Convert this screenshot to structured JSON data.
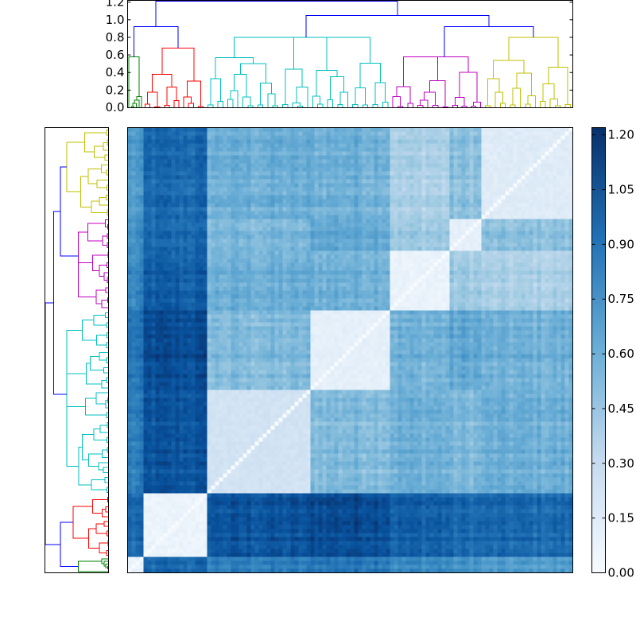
{
  "chart_data": {
    "type": "heatmap",
    "title": "",
    "description_kind": "clustered distance matrix with dendrograms",
    "colormap": {
      "name": "Blues",
      "low": "#f7fbff",
      "high": "#08306b"
    },
    "colorbar": {
      "vmin": 0.0,
      "vmax": 1.22,
      "ticks": [
        0.0,
        0.15,
        0.3,
        0.45,
        0.6,
        0.75,
        0.9,
        1.05,
        1.2
      ],
      "tick_labels": [
        "0.00",
        "0.15",
        "0.30",
        "0.45",
        "0.60",
        "0.75",
        "0.90",
        "1.05",
        "1.20"
      ]
    },
    "top_dendrogram": {
      "yticks": [
        0.0,
        0.2,
        0.4,
        0.6,
        0.8,
        1.0,
        1.2
      ],
      "ytick_labels": [
        "0.0",
        "0.2",
        "0.4",
        "0.6",
        "0.8",
        "1.0",
        "1.2"
      ],
      "ylim": [
        0.0,
        1.22
      ],
      "link_color": "#0000ff"
    },
    "leaf_count": 300,
    "clusters": [
      {
        "name": "green",
        "color": "#008000",
        "start": 0.0,
        "end": 0.034,
        "within": 0.05,
        "max_height": 0.58
      },
      {
        "name": "red",
        "color": "#ff0000",
        "start": 0.034,
        "end": 0.175,
        "within": 0.04,
        "max_height": 0.68
      },
      {
        "name": "cyan-a",
        "color": "#00bfbf",
        "start": 0.175,
        "end": 0.41,
        "within": 0.2,
        "max_height": 0.8
      },
      {
        "name": "cyan-b",
        "color": "#00bfbf",
        "start": 0.41,
        "end": 0.59,
        "within": 0.08,
        "max_height": 0.8
      },
      {
        "name": "magenta",
        "color": "#bf00bf",
        "start": 0.59,
        "end": 0.725,
        "within": 0.05,
        "max_height": 0.58
      },
      {
        "name": "magenta-b",
        "color": "#bf00bf",
        "start": 0.725,
        "end": 0.798,
        "within": 0.08,
        "max_height": 0.4
      },
      {
        "name": "yellow",
        "color": "#bfbf00",
        "start": 0.798,
        "end": 1.0,
        "within": 0.12,
        "max_height": 0.8
      }
    ],
    "block_distances": [
      [
        0.05,
        0.95,
        0.85,
        0.9,
        0.8,
        0.75,
        0.7
      ],
      [
        0.95,
        0.04,
        1.05,
        1.1,
        1.0,
        0.95,
        0.95
      ],
      [
        0.85,
        1.05,
        0.2,
        0.55,
        0.6,
        0.55,
        0.6
      ],
      [
        0.9,
        1.1,
        0.55,
        0.08,
        0.6,
        0.65,
        0.6
      ],
      [
        0.8,
        1.0,
        0.6,
        0.6,
        0.05,
        0.45,
        0.4
      ],
      [
        0.75,
        0.95,
        0.55,
        0.65,
        0.45,
        0.08,
        0.5
      ],
      [
        0.7,
        0.95,
        0.6,
        0.6,
        0.4,
        0.5,
        0.12
      ]
    ],
    "top_links": [
      {
        "from": "red",
        "to": "green",
        "height": 0.92
      },
      {
        "from": "cyan-a",
        "to": "cyan-b",
        "height": 0.8
      },
      {
        "from": "magenta",
        "to": "magenta-b",
        "height": 0.58
      },
      {
        "from": "magenta",
        "to": "yellow",
        "height": 0.92
      },
      {
        "from": "cyan-a",
        "to": "magenta",
        "height": 1.05
      },
      {
        "from": "green",
        "to": "cyan-a",
        "height": 1.21
      }
    ]
  }
}
